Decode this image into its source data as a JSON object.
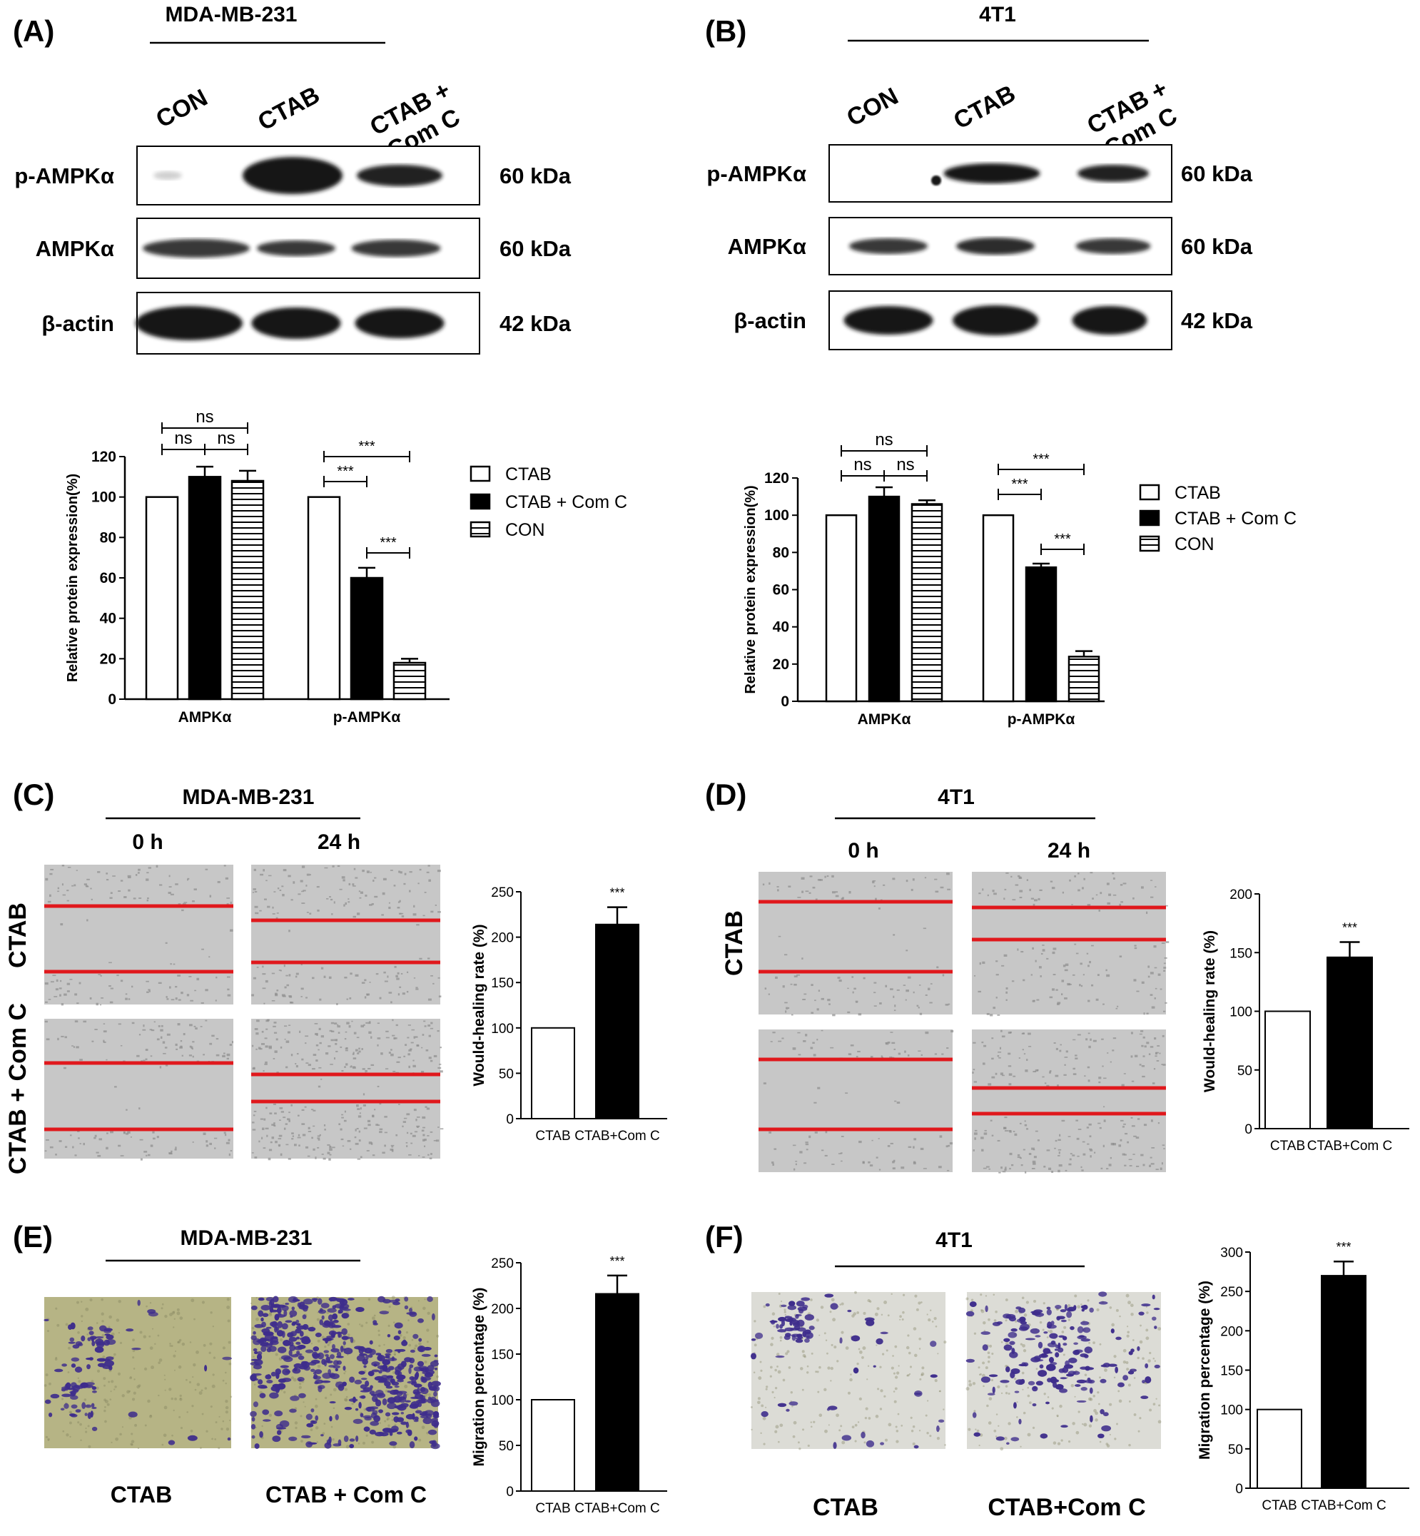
{
  "colors": {
    "ink": "#000000",
    "scratch": "#e0181c",
    "micro": "#c7c7c7",
    "transwell_a": "#b6b485",
    "transwell_b": "#dcdcd6",
    "cell": "#3e2d8c",
    "band": "#181818"
  },
  "panels": {
    "A": {
      "label": "(A)",
      "cell_line": "MDA-MB-231",
      "lanes": [
        "CON",
        "CTAB",
        "CTAB +\nCom C"
      ],
      "rows": [
        {
          "name": "p-AMPKα",
          "kda": "60 kDa"
        },
        {
          "name": "AMPKα",
          "kda": "60 kDa"
        },
        {
          "name": "β-actin",
          "kda": "42 kDa"
        }
      ]
    },
    "B": {
      "label": "(B)",
      "cell_line": "4T1",
      "lanes": [
        "CON",
        "CTAB",
        "CTAB +\nCom C"
      ],
      "rows": [
        {
          "name": "p-AMPKα",
          "kda": "60 kDa"
        },
        {
          "name": "AMPKα",
          "kda": "60 kDa"
        },
        {
          "name": "β-actin",
          "kda": "42 kDa"
        }
      ]
    },
    "C": {
      "label": "(C)",
      "cell_line": "MDA-MB-231",
      "times": [
        "0 h",
        "24 h"
      ],
      "rows": [
        "CTAB",
        "CTAB + Com C"
      ]
    },
    "D": {
      "label": "(D)",
      "cell_line": "4T1",
      "times": [
        "0 h",
        "24 h"
      ],
      "rows": [
        "CTAB",
        ""
      ]
    },
    "E": {
      "label": "(E)",
      "cell_line": "MDA-MB-231",
      "captions": [
        "CTAB",
        "CTAB + Com C"
      ]
    },
    "F": {
      "label": "(F)",
      "cell_line": "4T1",
      "captions": [
        "CTAB",
        "CTAB+Com C"
      ]
    }
  },
  "chart_data": [
    {
      "panel": "A",
      "type": "bar",
      "ylabel": "Relative protein expression(%)",
      "ylim": [
        0,
        120
      ],
      "yticks": [
        0,
        20,
        40,
        60,
        80,
        100,
        120
      ],
      "categories": [
        "AMPKα",
        "p-AMPKα"
      ],
      "series": [
        {
          "name": "CTAB",
          "values": [
            100,
            100
          ],
          "errors": [
            0,
            0
          ]
        },
        {
          "name": "CTAB + Com C",
          "values": [
            110,
            60
          ],
          "errors": [
            5,
            5
          ]
        },
        {
          "name": "CON",
          "values": [
            108,
            18
          ],
          "errors": [
            5,
            2
          ]
        }
      ],
      "annotations": [
        {
          "group": 0,
          "pair": [
            0,
            2
          ],
          "text": "ns"
        },
        {
          "group": 0,
          "pair": [
            0,
            1
          ],
          "text": "ns"
        },
        {
          "group": 0,
          "pair": [
            1,
            2
          ],
          "text": "ns"
        },
        {
          "group": 1,
          "pair": [
            0,
            2
          ],
          "text": "***"
        },
        {
          "group": 1,
          "pair": [
            0,
            1
          ],
          "text": "***"
        },
        {
          "group": 1,
          "pair": [
            1,
            2
          ],
          "text": "***"
        }
      ]
    },
    {
      "panel": "B",
      "type": "bar",
      "ylabel": "Relative protein expression(%)",
      "ylim": [
        0,
        120
      ],
      "yticks": [
        0,
        20,
        40,
        60,
        80,
        100,
        120
      ],
      "categories": [
        "AMPKα",
        "p-AMPKα"
      ],
      "series": [
        {
          "name": "CTAB",
          "values": [
            100,
            100
          ],
          "errors": [
            0,
            0
          ]
        },
        {
          "name": "CTAB + Com C",
          "values": [
            110,
            72
          ],
          "errors": [
            5,
            2
          ]
        },
        {
          "name": "CON",
          "values": [
            106,
            24
          ],
          "errors": [
            2,
            3
          ]
        }
      ],
      "annotations": [
        {
          "group": 0,
          "pair": [
            0,
            2
          ],
          "text": "ns"
        },
        {
          "group": 0,
          "pair": [
            0,
            1
          ],
          "text": "ns"
        },
        {
          "group": 0,
          "pair": [
            1,
            2
          ],
          "text": "ns"
        },
        {
          "group": 1,
          "pair": [
            0,
            2
          ],
          "text": "***"
        },
        {
          "group": 1,
          "pair": [
            0,
            1
          ],
          "text": "***"
        },
        {
          "group": 1,
          "pair": [
            1,
            2
          ],
          "text": "***"
        }
      ]
    },
    {
      "panel": "C",
      "type": "bar",
      "ylabel": "Would-healing rate (%)",
      "ylim": [
        0,
        250
      ],
      "yticks": [
        0,
        50,
        100,
        150,
        200,
        250
      ],
      "categories": [
        "CTAB",
        "CTAB+Com C"
      ],
      "values": [
        100,
        214
      ],
      "errors": [
        0,
        19
      ],
      "sig": "***"
    },
    {
      "panel": "D",
      "type": "bar",
      "ylabel": "Would-healing rate (%)",
      "ylim": [
        0,
        200
      ],
      "yticks": [
        0,
        50,
        100,
        150,
        200
      ],
      "categories": [
        "CTAB",
        "CTAB+Com C"
      ],
      "values": [
        100,
        146
      ],
      "errors": [
        0,
        13
      ],
      "sig": "***"
    },
    {
      "panel": "E",
      "type": "bar",
      "ylabel": "Migration percentage (%)",
      "ylim": [
        0,
        250
      ],
      "yticks": [
        0,
        50,
        100,
        150,
        200,
        250
      ],
      "categories": [
        "CTAB",
        "CTAB+Com C"
      ],
      "values": [
        100,
        216
      ],
      "errors": [
        0,
        20
      ],
      "sig": "***"
    },
    {
      "panel": "F",
      "type": "bar",
      "ylabel": "Migration percentage (%)",
      "ylim": [
        0,
        300
      ],
      "yticks": [
        0,
        50,
        100,
        150,
        200,
        250,
        300
      ],
      "categories": [
        "CTAB",
        "CTAB+Com C"
      ],
      "values": [
        100,
        270
      ],
      "errors": [
        0,
        18
      ],
      "sig": "***"
    }
  ]
}
